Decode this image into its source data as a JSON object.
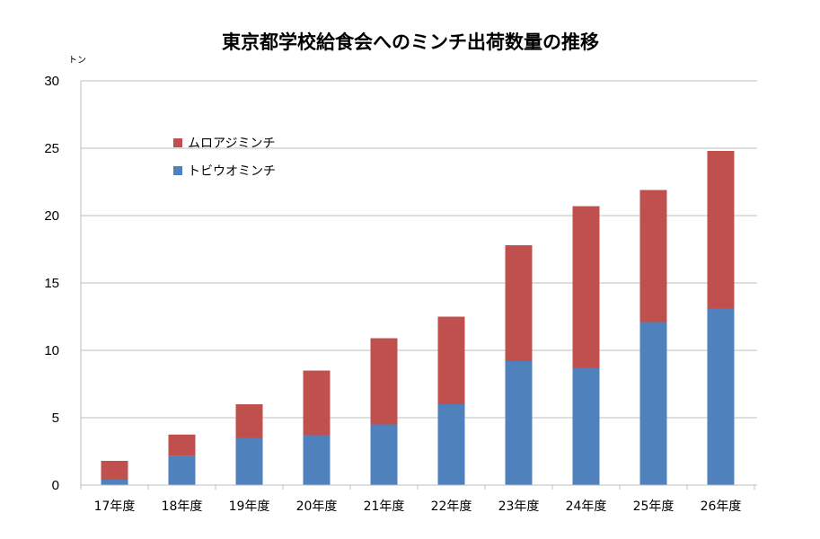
{
  "chart_data": {
    "type": "bar",
    "stacked": true,
    "title": "東京都学校給食会へのミンチ出荷数量の推移",
    "ylabel": "トン",
    "xlabel": "",
    "ylim": [
      0,
      30
    ],
    "yticks": [
      0,
      5,
      10,
      15,
      20,
      25,
      30
    ],
    "grid": true,
    "legend_position": "top-left",
    "categories": [
      "17年度",
      "18年度",
      "19年度",
      "20年度",
      "21年度",
      "22年度",
      "23年度",
      "24年度",
      "25年度",
      "26年度"
    ],
    "series": [
      {
        "name": "トビウオミンチ",
        "color": "#4F81BD",
        "values": [
          0.4,
          2.15,
          3.5,
          3.7,
          4.5,
          6.0,
          9.2,
          8.7,
          12.1,
          13.1
        ]
      },
      {
        "name": "ムロアジミンチ",
        "color": "#C0504D",
        "values": [
          1.4,
          1.6,
          2.5,
          4.8,
          6.4,
          6.5,
          8.6,
          12.0,
          9.8,
          11.7
        ]
      }
    ]
  }
}
